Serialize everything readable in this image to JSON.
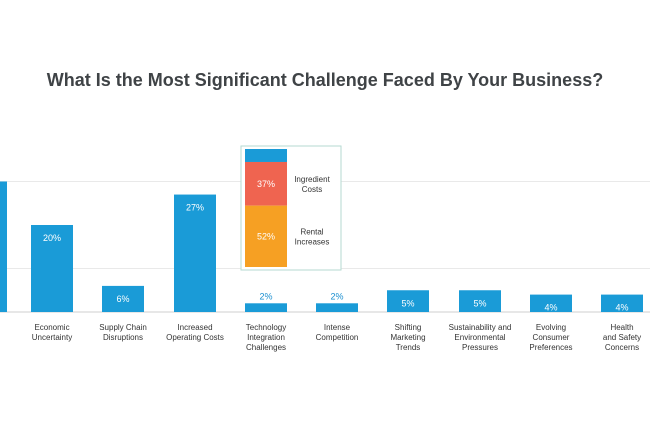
{
  "chart_data": {
    "type": "bar",
    "title": "What Is the Most Significant Challenge Faced By Your Business?",
    "categories": [
      "",
      "Economic Uncertainty",
      "Supply Chain Disruptions",
      "Increased Operating Costs",
      "Technology Integration Challenges",
      "Intense Competition",
      "Shifting Marketing Trends",
      "Sustainability and Environmental Pressures",
      "Evolving Consumer Preferences",
      "Health and Safety Concerns"
    ],
    "category_lines": [
      [],
      [
        "Economic",
        "Uncertainty"
      ],
      [
        "Supply Chain",
        "Disruptions"
      ],
      [
        "Increased",
        "Operating Costs"
      ],
      [
        "Technology",
        "Integration",
        "Challenges"
      ],
      [
        "Intense",
        "Competition"
      ],
      [
        "Shifting",
        "Marketing",
        "Trends"
      ],
      [
        "Sustainability and",
        "Environmental",
        "Pressures"
      ],
      [
        "Evolving",
        "Consumer",
        "Preferences"
      ],
      [
        "Health",
        "and Safety",
        "Concerns"
      ]
    ],
    "values": [
      30,
      20,
      6,
      27,
      2,
      2,
      5,
      5,
      4,
      4
    ],
    "value_labels": [
      "",
      "20%",
      "6%",
      "27%",
      "2%",
      "2%",
      "5%",
      "5%",
      "4%",
      "4%"
    ],
    "ylim": [
      0,
      40
    ],
    "grid": true,
    "bar_color": "#1a9bd7",
    "breakdown": {
      "parent": "Increased Operating Costs",
      "segments": [
        {
          "name": "",
          "value": 11,
          "label": "",
          "color": "#1a9bd7"
        },
        {
          "name": "Ingredient Costs",
          "lines": [
            "Ingredient",
            "Costs"
          ],
          "value": 37,
          "label": "37%",
          "color": "#ef6450"
        },
        {
          "name": "Rental Increases",
          "lines": [
            "Rental",
            "Increases"
          ],
          "value": 52,
          "label": "52%",
          "color": "#f6a023"
        }
      ]
    }
  }
}
